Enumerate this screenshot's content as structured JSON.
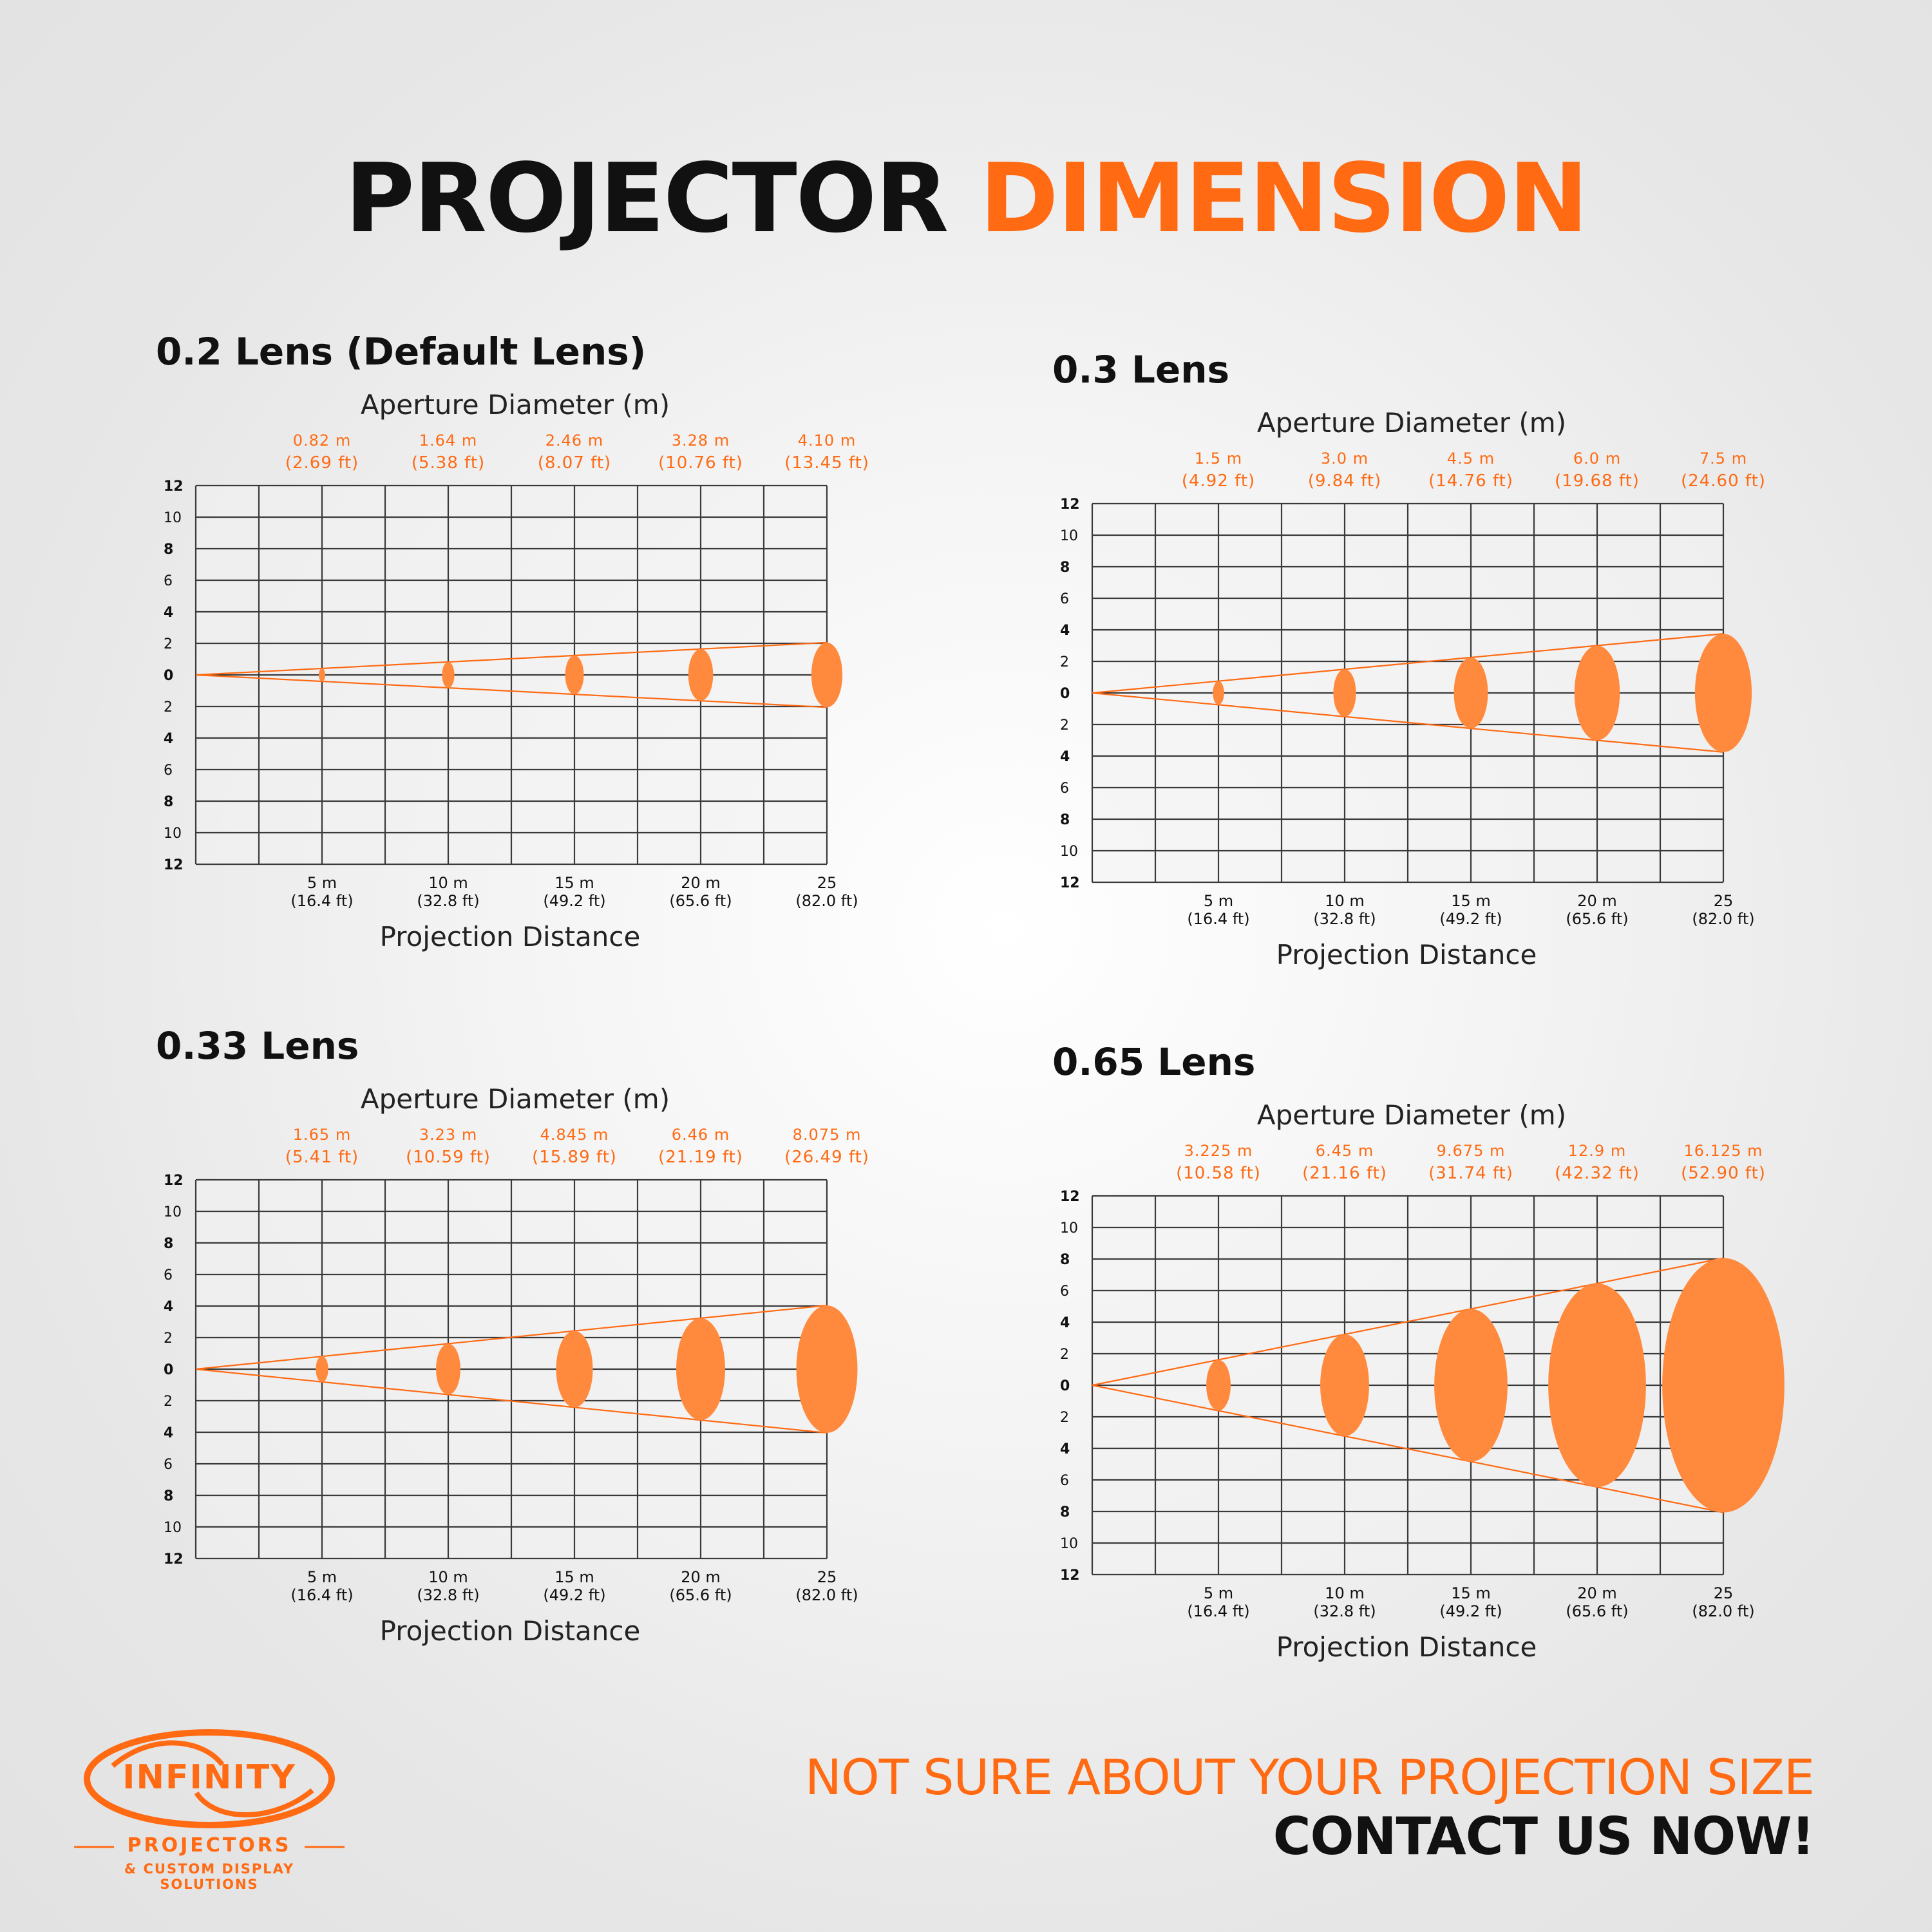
{
  "header": {
    "title_dark": "PROJECTOR",
    "title_accent": "DIMENSION"
  },
  "colors": {
    "accent": "#ff6a13",
    "beam": "#ff8a3d",
    "grid": "#3a3a3a",
    "text": "#111111"
  },
  "chart_data": [
    {
      "type": "scatter",
      "title": "0.2 Lens (Default Lens)",
      "top_axis_title": "Aperture Diameter (m)",
      "xlabel": "Projection Distance",
      "x": [
        5,
        10,
        15,
        20,
        25
      ],
      "x_tick_labels": [
        {
          "top": "5 m",
          "bottom": "(16.4 ft)"
        },
        {
          "top": "10 m",
          "bottom": "(32.8 ft)"
        },
        {
          "top": "15 m",
          "bottom": "(49.2 ft)"
        },
        {
          "top": "20 m",
          "bottom": "(65.6 ft)"
        },
        {
          "top": "25",
          "bottom": "(82.0 ft)"
        }
      ],
      "diameters_m": [
        0.82,
        1.64,
        2.46,
        3.28,
        4.1
      ],
      "aperture_labels": [
        {
          "m": "0.82 m",
          "ft": "(2.69 ft)"
        },
        {
          "m": "1.64 m",
          "ft": "(5.38 ft)"
        },
        {
          "m": "2.46 m",
          "ft": "(8.07 ft)"
        },
        {
          "m": "3.28 m",
          "ft": "(10.76 ft)"
        },
        {
          "m": "4.10 m",
          "ft": "(13.45 ft)"
        }
      ],
      "y_tick_labels": [
        "12",
        "10",
        "8",
        "6",
        "4",
        "2",
        "0",
        "2",
        "4",
        "6",
        "8",
        "10",
        "12"
      ],
      "xlim": [
        0,
        25
      ],
      "ylim": [
        -12,
        12
      ],
      "grid": true
    },
    {
      "type": "scatter",
      "title": "0.3 Lens",
      "top_axis_title": "Aperture Diameter (m)",
      "xlabel": "Projection Distance",
      "x": [
        5,
        10,
        15,
        20,
        25
      ],
      "x_tick_labels": [
        {
          "top": "5 m",
          "bottom": "(16.4 ft)"
        },
        {
          "top": "10 m",
          "bottom": "(32.8 ft)"
        },
        {
          "top": "15 m",
          "bottom": "(49.2 ft)"
        },
        {
          "top": "20 m",
          "bottom": "(65.6 ft)"
        },
        {
          "top": "25",
          "bottom": "(82.0 ft)"
        }
      ],
      "diameters_m": [
        1.5,
        3.0,
        4.5,
        6.0,
        7.5
      ],
      "aperture_labels": [
        {
          "m": "1.5 m",
          "ft": "(4.92 ft)"
        },
        {
          "m": "3.0 m",
          "ft": "(9.84 ft)"
        },
        {
          "m": "4.5 m",
          "ft": "(14.76 ft)"
        },
        {
          "m": "6.0 m",
          "ft": "(19.68 ft)"
        },
        {
          "m": "7.5 m",
          "ft": "(24.60 ft)"
        }
      ],
      "y_tick_labels": [
        "12",
        "10",
        "8",
        "6",
        "4",
        "2",
        "0",
        "2",
        "4",
        "6",
        "8",
        "10",
        "12"
      ],
      "xlim": [
        0,
        25
      ],
      "ylim": [
        -12,
        12
      ],
      "grid": true
    },
    {
      "type": "scatter",
      "title": "0.33 Lens",
      "top_axis_title": "Aperture Diameter (m)",
      "xlabel": "Projection Distance",
      "x": [
        5,
        10,
        15,
        20,
        25
      ],
      "x_tick_labels": [
        {
          "top": "5 m",
          "bottom": "(16.4 ft)"
        },
        {
          "top": "10 m",
          "bottom": "(32.8 ft)"
        },
        {
          "top": "15 m",
          "bottom": "(49.2 ft)"
        },
        {
          "top": "20 m",
          "bottom": "(65.6 ft)"
        },
        {
          "top": "25",
          "bottom": "(82.0 ft)"
        }
      ],
      "diameters_m": [
        1.65,
        3.23,
        4.845,
        6.46,
        8.075
      ],
      "aperture_labels": [
        {
          "m": "1.65 m",
          "ft": "(5.41 ft)"
        },
        {
          "m": "3.23 m",
          "ft": "(10.59 ft)"
        },
        {
          "m": "4.845 m",
          "ft": "(15.89 ft)"
        },
        {
          "m": "6.46 m",
          "ft": "(21.19 ft)"
        },
        {
          "m": "8.075 m",
          "ft": "(26.49 ft)"
        }
      ],
      "y_tick_labels": [
        "12",
        "10",
        "8",
        "6",
        "4",
        "2",
        "0",
        "2",
        "4",
        "6",
        "8",
        "10",
        "12"
      ],
      "xlim": [
        0,
        25
      ],
      "ylim": [
        -12,
        12
      ],
      "grid": true
    },
    {
      "type": "scatter",
      "title": "0.65 Lens",
      "top_axis_title": "Aperture Diameter (m)",
      "xlabel": "Projection Distance",
      "x": [
        5,
        10,
        15,
        20,
        25
      ],
      "x_tick_labels": [
        {
          "top": "5 m",
          "bottom": "(16.4 ft)"
        },
        {
          "top": "10 m",
          "bottom": "(32.8 ft)"
        },
        {
          "top": "15 m",
          "bottom": "(49.2 ft)"
        },
        {
          "top": "20 m",
          "bottom": "(65.6 ft)"
        },
        {
          "top": "25",
          "bottom": "(82.0 ft)"
        }
      ],
      "diameters_m": [
        3.225,
        6.45,
        9.675,
        12.9,
        16.125
      ],
      "aperture_labels": [
        {
          "m": "3.225 m",
          "ft": "(10.58 ft)"
        },
        {
          "m": "6.45 m",
          "ft": "(21.16 ft)"
        },
        {
          "m": "9.675 m",
          "ft": "(31.74 ft)"
        },
        {
          "m": "12.9 m",
          "ft": "(42.32 ft)"
        },
        {
          "m": "16.125 m",
          "ft": "(52.90 ft)"
        }
      ],
      "y_tick_labels": [
        "12",
        "10",
        "8",
        "6",
        "4",
        "2",
        "0",
        "2",
        "4",
        "6",
        "8",
        "10",
        "12"
      ],
      "xlim": [
        0,
        25
      ],
      "ylim": [
        -12,
        12
      ],
      "grid": true
    }
  ],
  "footer": {
    "logo_word": "INFINITY",
    "logo_line1": "PROJECTORS",
    "logo_line2": "& CUSTOM DISPLAY SOLUTIONS",
    "cta_line1": "NOT SURE ABOUT YOUR PROJECTION SIZE",
    "cta_line2": "CONTACT US NOW!"
  }
}
